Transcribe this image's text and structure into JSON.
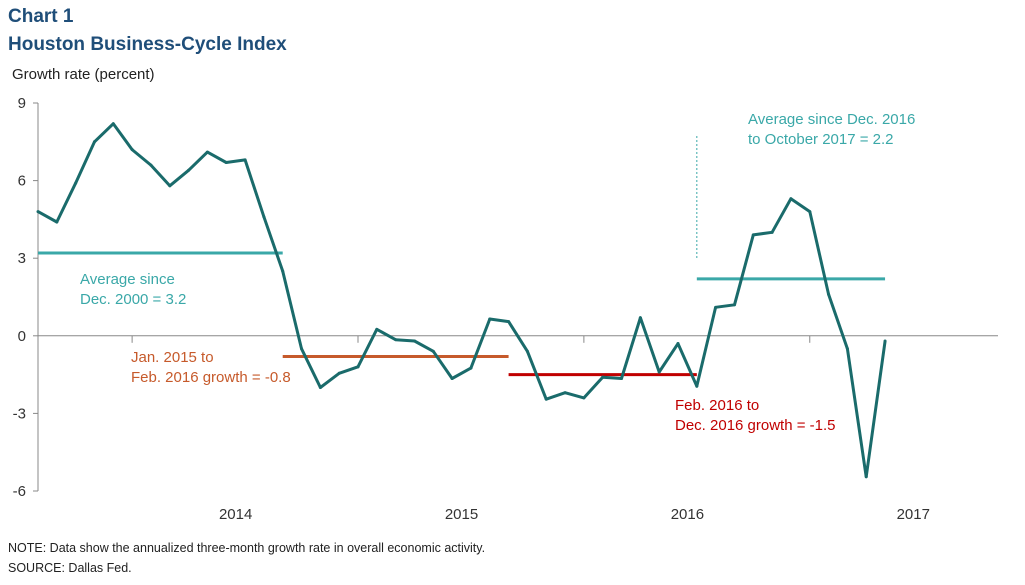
{
  "header": {
    "chart_number": "Chart 1",
    "title": "Houston Business-Cycle Index"
  },
  "notes": {
    "note": "NOTE: Data show the annualized three-month growth rate in overall economic activity.",
    "source": "SOURCE: Dallas Fed."
  },
  "colors": {
    "series": "#1a6b6b",
    "avg_long": "#3aa8a8",
    "avg_2015": "#c65a2b",
    "avg_2016": "#c00000",
    "title": "#1f4e79"
  },
  "chart_data": {
    "type": "line",
    "title": "Houston Business-Cycle Index",
    "ylabel": "Growth rate (percent)",
    "xlabel": "",
    "ylim": [
      -6,
      9
    ],
    "yticks": [
      -6,
      -3,
      0,
      3,
      6,
      9
    ],
    "xlim": [
      "2013-08",
      "2017-11"
    ],
    "xticks": [
      "2014",
      "2015",
      "2016",
      "2017"
    ],
    "grid": false,
    "series": [
      {
        "x": [
          "2013-08",
          "2013-09",
          "2013-10",
          "2013-11",
          "2013-12",
          "2014-01",
          "2014-02",
          "2014-03",
          "2014-04",
          "2014-05",
          "2014-06",
          "2014-07",
          "2014-08",
          "2014-09",
          "2014-10",
          "2014-11",
          "2014-12",
          "2015-01",
          "2015-02",
          "2015-03",
          "2015-04",
          "2015-05",
          "2015-06",
          "2015-07",
          "2015-08",
          "2015-09",
          "2015-10",
          "2015-11",
          "2015-12",
          "2016-01",
          "2016-02",
          "2016-03",
          "2016-04",
          "2016-05",
          "2016-06",
          "2016-07",
          "2016-08",
          "2016-09",
          "2016-10",
          "2016-11",
          "2016-12",
          "2017-01",
          "2017-02",
          "2017-03",
          "2017-04",
          "2017-05"
        ],
        "values": [
          4.8,
          4.4,
          5.9,
          7.5,
          8.2,
          7.2,
          6.6,
          5.8,
          6.4,
          7.1,
          6.7,
          6.8,
          4.6,
          2.5,
          -0.5,
          -2.0,
          -1.45,
          -1.2,
          0.25,
          -0.15,
          -0.2,
          -0.6,
          -1.65,
          -1.25,
          0.65,
          0.55,
          -0.6,
          -2.45,
          -2.2,
          -2.4,
          -1.6,
          -1.65,
          0.7,
          -1.4,
          -0.3,
          -1.95,
          1.1,
          1.2,
          3.9,
          4.0,
          5.3,
          4.8,
          1.6,
          -0.5,
          -5.45,
          -0.2
        ]
      }
    ],
    "reference_lines": [
      {
        "value": 3.2,
        "x_start": "2013-08",
        "x_end": "2014-09"
      },
      {
        "value": -0.8,
        "x_start": "2014-09",
        "x_end": "2015-09"
      },
      {
        "value": -1.5,
        "x_start": "2015-09",
        "x_end": "2016-07"
      },
      {
        "value": 2.2,
        "x_start": "2016-07",
        "x_end": "2017-05"
      }
    ],
    "annotations": [
      {
        "line1": "Average since",
        "line2": "Dec. 2000 = 3.2"
      },
      {
        "line1": "Jan. 2015 to",
        "line2": "Feb. 2016 growth = -0.8"
      },
      {
        "line1": "Feb. 2016 to",
        "line2": "Dec. 2016 growth = -1.5"
      },
      {
        "line1": "Average since Dec. 2016",
        "line2": "to October 2017 = 2.2"
      }
    ]
  }
}
